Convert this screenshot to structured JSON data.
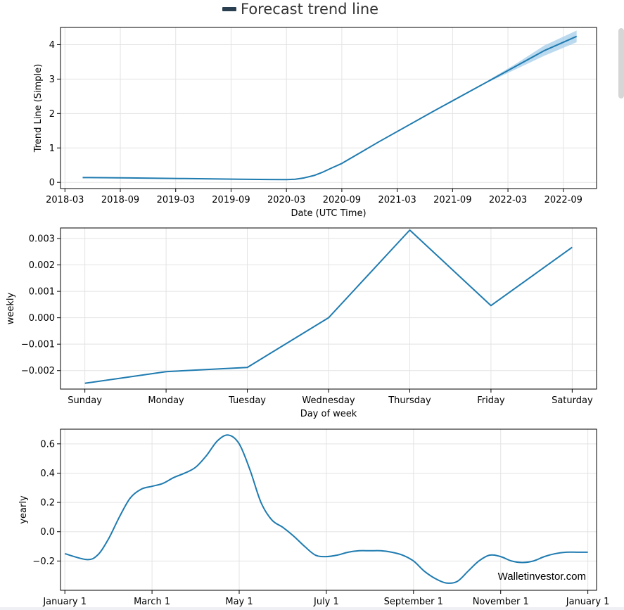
{
  "legend": {
    "label": "Forecast trend line",
    "color": "#2a3f4f"
  },
  "watermark": "Walletinvestor.com",
  "colors": {
    "line": "#1f7bb0",
    "band": "#9ecae8",
    "grid": "#e3e3e3"
  },
  "chart_data": [
    {
      "id": "trend",
      "type": "line",
      "xlabel": "Date (UTC Time)",
      "ylabel": "Trend Line (Simple)",
      "xlim": [
        2018.13,
        2022.97
      ],
      "ylim": [
        -0.18,
        4.5
      ],
      "xticks": [
        {
          "v": 2018.17,
          "label": "2018-03"
        },
        {
          "v": 2018.67,
          "label": "2018-09"
        },
        {
          "v": 2019.17,
          "label": "2019-03"
        },
        {
          "v": 2019.67,
          "label": "2019-09"
        },
        {
          "v": 2020.17,
          "label": "2020-03"
        },
        {
          "v": 2020.67,
          "label": "2020-09"
        },
        {
          "v": 2021.17,
          "label": "2021-03"
        },
        {
          "v": 2021.67,
          "label": "2021-09"
        },
        {
          "v": 2022.17,
          "label": "2022-03"
        },
        {
          "v": 2022.67,
          "label": "2022-09"
        }
      ],
      "yticks": [
        0,
        1,
        2,
        3,
        4
      ],
      "x": [
        2018.33,
        2018.75,
        2019.25,
        2019.75,
        2020.17,
        2020.25,
        2020.33,
        2020.42,
        2020.5,
        2020.58,
        2020.67,
        2020.83,
        2021.0,
        2021.5,
        2022.0,
        2022.5,
        2022.79
      ],
      "y": [
        0.14,
        0.13,
        0.11,
        0.09,
        0.08,
        0.09,
        0.13,
        0.2,
        0.3,
        0.42,
        0.55,
        0.85,
        1.17,
        2.07,
        2.95,
        3.83,
        4.24
      ],
      "band": {
        "x": [
          2022.0,
          2022.25,
          2022.5,
          2022.79
        ],
        "lower": [
          2.92,
          3.3,
          3.68,
          4.07
        ],
        "upper": [
          2.98,
          3.46,
          3.98,
          4.41
        ]
      }
    },
    {
      "id": "weekly",
      "type": "line",
      "xlabel": "Day of week",
      "ylabel": "weekly",
      "xlim": [
        -0.3,
        6.3
      ],
      "ylim": [
        -0.0027,
        0.0034
      ],
      "categories": [
        "Sunday",
        "Monday",
        "Tuesday",
        "Wednesday",
        "Thursday",
        "Friday",
        "Saturday"
      ],
      "yticks": [
        {
          "v": -0.002,
          "label": "−0.002"
        },
        {
          "v": -0.001,
          "label": "−0.001"
        },
        {
          "v": 0.0,
          "label": "0.000"
        },
        {
          "v": 0.001,
          "label": "0.001"
        },
        {
          "v": 0.002,
          "label": "0.002"
        },
        {
          "v": 0.003,
          "label": "0.003"
        }
      ],
      "values": [
        -0.00248,
        -0.00204,
        -0.00188,
        0.0,
        0.00332,
        0.00046,
        0.00267
      ]
    },
    {
      "id": "yearly",
      "type": "line",
      "xlabel": "",
      "ylabel": "yearly",
      "xlim": [
        -0.1,
        12.2
      ],
      "ylim": [
        -0.4,
        0.7
      ],
      "xticks": [
        {
          "v": 0,
          "label": "January 1"
        },
        {
          "v": 2,
          "label": "March 1"
        },
        {
          "v": 4,
          "label": "May 1"
        },
        {
          "v": 6,
          "label": "July 1"
        },
        {
          "v": 8,
          "label": "September 1"
        },
        {
          "v": 10,
          "label": "November 1"
        },
        {
          "v": 12,
          "label": "January 1"
        }
      ],
      "yticks": [
        {
          "v": -0.2,
          "label": "−0.2"
        },
        {
          "v": 0.0,
          "label": "0.0"
        },
        {
          "v": 0.2,
          "label": "0.2"
        },
        {
          "v": 0.4,
          "label": "0.4"
        },
        {
          "v": 0.6,
          "label": "0.6"
        }
      ],
      "x": [
        0,
        0.5,
        0.75,
        1.0,
        1.25,
        1.5,
        1.75,
        2.0,
        2.25,
        2.5,
        2.75,
        3.0,
        3.25,
        3.5,
        3.75,
        4.0,
        4.25,
        4.5,
        4.75,
        5.0,
        5.25,
        5.5,
        5.75,
        6.0,
        6.25,
        6.5,
        6.75,
        7.0,
        7.25,
        7.5,
        7.75,
        8.0,
        8.25,
        8.5,
        8.75,
        9.0,
        9.25,
        9.5,
        9.75,
        10.0,
        10.25,
        10.5,
        10.75,
        11.0,
        11.25,
        11.5,
        11.75,
        12.0
      ],
      "y": [
        -0.15,
        -0.19,
        -0.16,
        -0.05,
        0.1,
        0.23,
        0.29,
        0.31,
        0.33,
        0.37,
        0.4,
        0.44,
        0.52,
        0.62,
        0.66,
        0.6,
        0.42,
        0.2,
        0.08,
        0.03,
        -0.03,
        -0.1,
        -0.16,
        -0.17,
        -0.16,
        -0.14,
        -0.13,
        -0.13,
        -0.13,
        -0.14,
        -0.16,
        -0.2,
        -0.27,
        -0.32,
        -0.35,
        -0.34,
        -0.27,
        -0.2,
        -0.16,
        -0.17,
        -0.2,
        -0.21,
        -0.2,
        -0.17,
        -0.15,
        -0.14,
        -0.14,
        -0.14
      ]
    }
  ]
}
